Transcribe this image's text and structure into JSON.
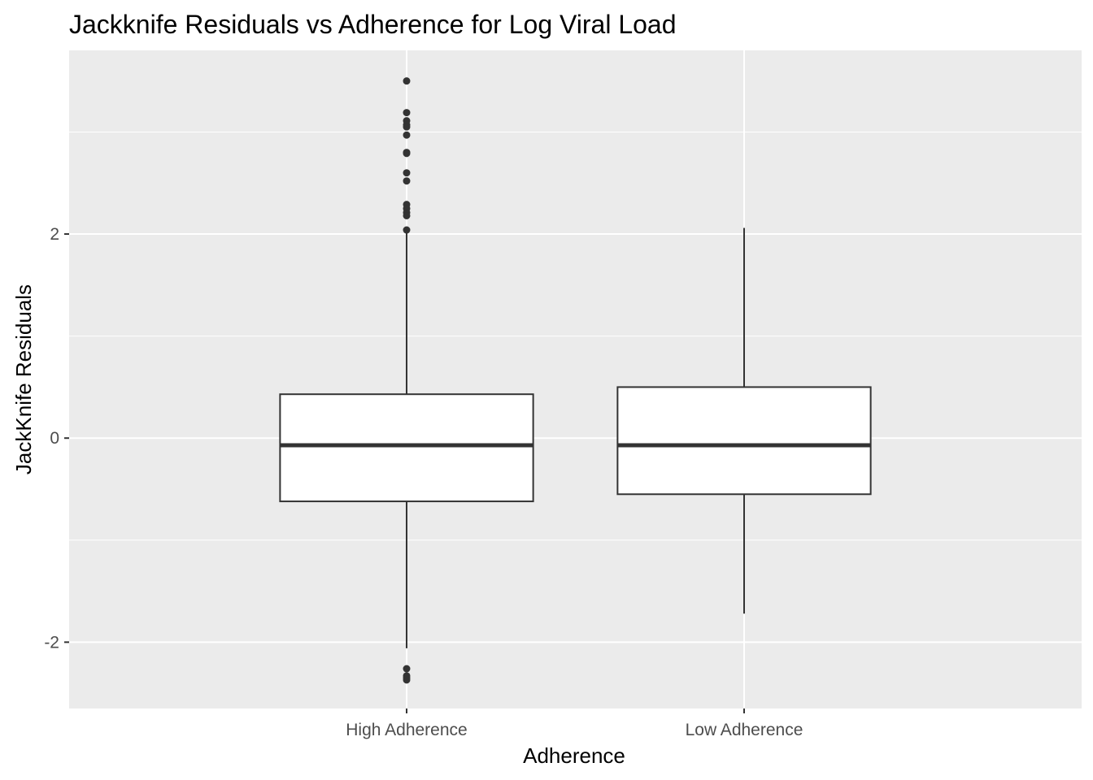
{
  "chart_data": {
    "type": "boxplot",
    "title": "Jackknife Residuals vs Adherence for Log Viral Load",
    "xlabel": "Adherence",
    "ylabel": "JackKnife Residuals",
    "ylim": [
      -2.65,
      3.8
    ],
    "yticks": [
      -2,
      0,
      2
    ],
    "ytick_labels": [
      "-2",
      "0",
      "2"
    ],
    "categories": [
      "High Adherence",
      "Low Adherence"
    ],
    "grid": true,
    "colors": {
      "panel_background": "#ebebeb",
      "grid": "#ffffff",
      "box_fill": "#ffffff",
      "box_stroke": "#333333",
      "outlier": "#333333"
    },
    "boxes": [
      {
        "category": "High Adherence",
        "q1": -0.62,
        "median": -0.07,
        "q3": 0.43,
        "whisker_low": -2.06,
        "whisker_high": 2.02,
        "outliers": [
          3.5,
          3.19,
          3.11,
          3.07,
          3.05,
          2.97,
          2.8,
          2.79,
          2.6,
          2.52,
          2.29,
          2.25,
          2.21,
          2.18,
          2.04,
          -2.26,
          -2.33,
          -2.35,
          -2.37
        ]
      },
      {
        "category": "Low Adherence",
        "q1": -0.55,
        "median": -0.07,
        "q3": 0.5,
        "whisker_low": -1.72,
        "whisker_high": 2.06,
        "outliers": []
      }
    ]
  }
}
